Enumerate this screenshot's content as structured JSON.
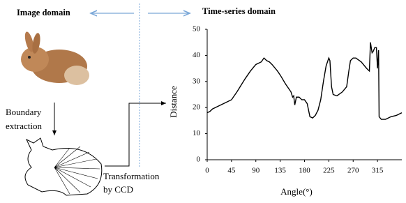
{
  "labels": {
    "image_domain": "Image domain",
    "time_series_domain": "Time-series domain",
    "boundary": "Boundary",
    "extraction": "extraction",
    "transformation": "Transformation",
    "by_ccd": "by CCD"
  },
  "chart_data": {
    "type": "line",
    "xlabel": "Angle(°)",
    "ylabel": "Distance",
    "x": [
      0,
      5,
      10,
      20,
      30,
      45,
      55,
      70,
      80,
      90,
      100,
      105,
      110,
      115,
      120,
      130,
      135,
      145,
      155,
      158,
      160,
      162,
      165,
      170,
      175,
      180,
      185,
      190,
      195,
      200,
      205,
      210,
      215,
      220,
      225,
      227,
      230,
      233,
      240,
      250,
      258,
      262,
      265,
      270,
      275,
      285,
      295,
      300,
      302,
      305,
      307,
      310,
      313,
      315,
      317,
      318,
      322,
      330,
      340,
      350,
      360
    ],
    "series": [
      {
        "name": null,
        "color": "#000000",
        "values": [
          18,
          18.5,
          19.5,
          20.5,
          21.5,
          23,
          26,
          31,
          34,
          36.5,
          37.5,
          39,
          38,
          37.5,
          36.5,
          34,
          32.5,
          29,
          26,
          24,
          24.5,
          21,
          24,
          24,
          23,
          23,
          21.5,
          16.5,
          16,
          17,
          19,
          23,
          30,
          36,
          39,
          38,
          28,
          25,
          24.5,
          26,
          28,
          34,
          38,
          39,
          39,
          37.5,
          35,
          34,
          45,
          41,
          41.5,
          43,
          43,
          35,
          42,
          16.5,
          15.5,
          15.5,
          16.5,
          17,
          18
        ]
      }
    ],
    "xlim": [
      0,
      360
    ],
    "ylim": [
      0,
      50
    ],
    "xticks": [
      0,
      45,
      90,
      135,
      180,
      225,
      270,
      315
    ],
    "yticks": [
      0,
      10,
      20,
      30,
      40,
      50
    ]
  }
}
